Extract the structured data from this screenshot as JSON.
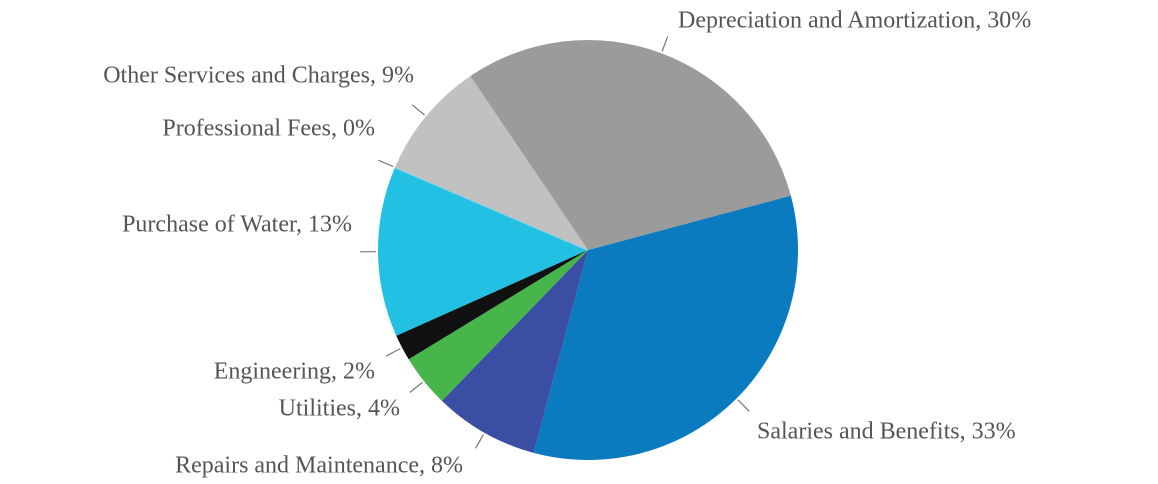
{
  "chart_data": {
    "type": "pie",
    "values": [
      33,
      8,
      4,
      2,
      13,
      0,
      9,
      30
    ],
    "value_labels": [
      "Salaries and Benefits, 33%",
      "Repairs and Maintenance, 8%",
      "Utilities, 4%",
      "Engineering, 2%",
      "Purchase of Water, 13%",
      "Professional Fees, 0%",
      "Other Services and Charges, 9%",
      "Depreciation and Amortization, 30%"
    ],
    "colors": [
      "#0b7bbf",
      "#3a4fa3",
      "#46b54a",
      "#111111",
      "#22c0e2",
      "#86d3ea",
      "#c1c1c1",
      "#9b9b9b"
    ]
  }
}
